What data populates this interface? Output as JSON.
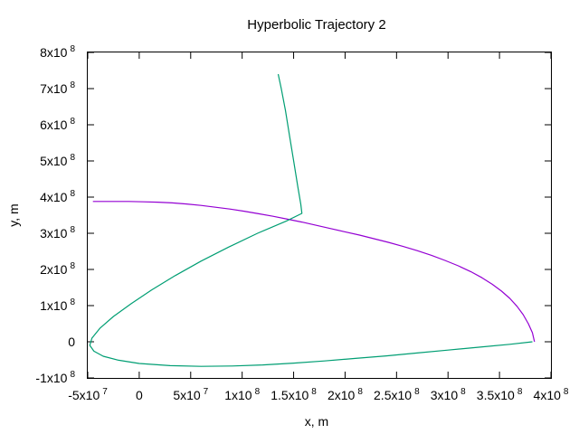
{
  "chart_data": {
    "type": "line",
    "title": "Hyperbolic Trajectory 2",
    "xlabel": "x, m",
    "ylabel": "y, m",
    "xlim": [
      -50000000,
      400000000
    ],
    "ylim": [
      -100000000,
      800000000
    ],
    "grid": false,
    "legend": "none",
    "x_ticks": [
      {
        "value": -50000000,
        "mantissa": "-5x10",
        "exp": "7"
      },
      {
        "value": 0,
        "mantissa": "0",
        "exp": ""
      },
      {
        "value": 50000000,
        "mantissa": "5x10",
        "exp": "7"
      },
      {
        "value": 100000000,
        "mantissa": "1x10",
        "exp": "8"
      },
      {
        "value": 150000000,
        "mantissa": "1.5x10",
        "exp": "8"
      },
      {
        "value": 200000000,
        "mantissa": "2x10",
        "exp": "8"
      },
      {
        "value": 250000000,
        "mantissa": "2.5x10",
        "exp": "8"
      },
      {
        "value": 300000000,
        "mantissa": "3x10",
        "exp": "8"
      },
      {
        "value": 350000000,
        "mantissa": "3.5x10",
        "exp": "8"
      },
      {
        "value": 400000000,
        "mantissa": "4x10",
        "exp": "8"
      }
    ],
    "y_ticks": [
      {
        "value": -100000000,
        "mantissa": "-1x10",
        "exp": "8"
      },
      {
        "value": 0,
        "mantissa": "0",
        "exp": ""
      },
      {
        "value": 100000000,
        "mantissa": "1x10",
        "exp": "8"
      },
      {
        "value": 200000000,
        "mantissa": "2x10",
        "exp": "8"
      },
      {
        "value": 300000000,
        "mantissa": "3x10",
        "exp": "8"
      },
      {
        "value": 400000000,
        "mantissa": "4x10",
        "exp": "8"
      },
      {
        "value": 500000000,
        "mantissa": "5x10",
        "exp": "8"
      },
      {
        "value": 600000000,
        "mantissa": "6x10",
        "exp": "8"
      },
      {
        "value": 700000000,
        "mantissa": "7x10",
        "exp": "8"
      },
      {
        "value": 800000000,
        "mantissa": "8x10",
        "exp": "8"
      }
    ],
    "series": [
      {
        "color": "#9400d3",
        "x": [
          384000000,
          382000000,
          378000000,
          373000000,
          367000000,
          360000000,
          352000000,
          343000000,
          333000000,
          322000000,
          310000000,
          297000000,
          284000000,
          270000000,
          256000000,
          242000000,
          228000000,
          214000000,
          200000000,
          186000000,
          172000000,
          158000000,
          144000000,
          130000000,
          116000000,
          102000000,
          88000000,
          74000000,
          60000000,
          46000000,
          32000000,
          18000000,
          4000000,
          -10000000,
          -24000000,
          -38000000,
          -45000000
        ],
        "y": [
          0,
          25000000,
          50000000,
          75000000,
          98000000,
          120000000,
          140000000,
          159000000,
          177000000,
          194000000,
          210000000,
          225000000,
          239000000,
          252000000,
          264000000,
          275000000,
          285000000,
          295000000,
          304000000,
          313000000,
          322000000,
          331000000,
          339000000,
          347000000,
          354000000,
          361000000,
          367000000,
          372000000,
          377000000,
          381000000,
          384000000,
          386000000,
          387000000,
          388000000,
          388000000,
          388000000,
          388000000
        ]
      },
      {
        "color": "#009e73",
        "x": [
          382000000,
          360000000,
          330000000,
          300000000,
          270000000,
          240000000,
          210000000,
          180000000,
          150000000,
          120000000,
          90000000,
          60000000,
          30000000,
          0,
          -20000000,
          -35000000,
          -44000000,
          -48000000,
          -46000000,
          -38000000,
          -25000000,
          -8000000,
          12000000,
          35000000,
          60000000,
          87000000,
          115000000,
          143000000,
          158000000,
          157000000,
          154000000,
          150000000,
          146000000,
          142000000,
          138000000,
          135000000
        ],
        "y": [
          0,
          -7000000,
          -15000000,
          -23000000,
          -31000000,
          -39000000,
          -46000000,
          -53000000,
          -59000000,
          -64000000,
          -67000000,
          -68000000,
          -66000000,
          -60000000,
          -51000000,
          -40000000,
          -26000000,
          -10000000,
          10000000,
          38000000,
          70000000,
          105000000,
          143000000,
          183000000,
          223000000,
          262000000,
          300000000,
          334000000,
          355000000,
          380000000,
          430000000,
          500000000,
          570000000,
          640000000,
          700000000,
          740000000
        ]
      }
    ]
  }
}
